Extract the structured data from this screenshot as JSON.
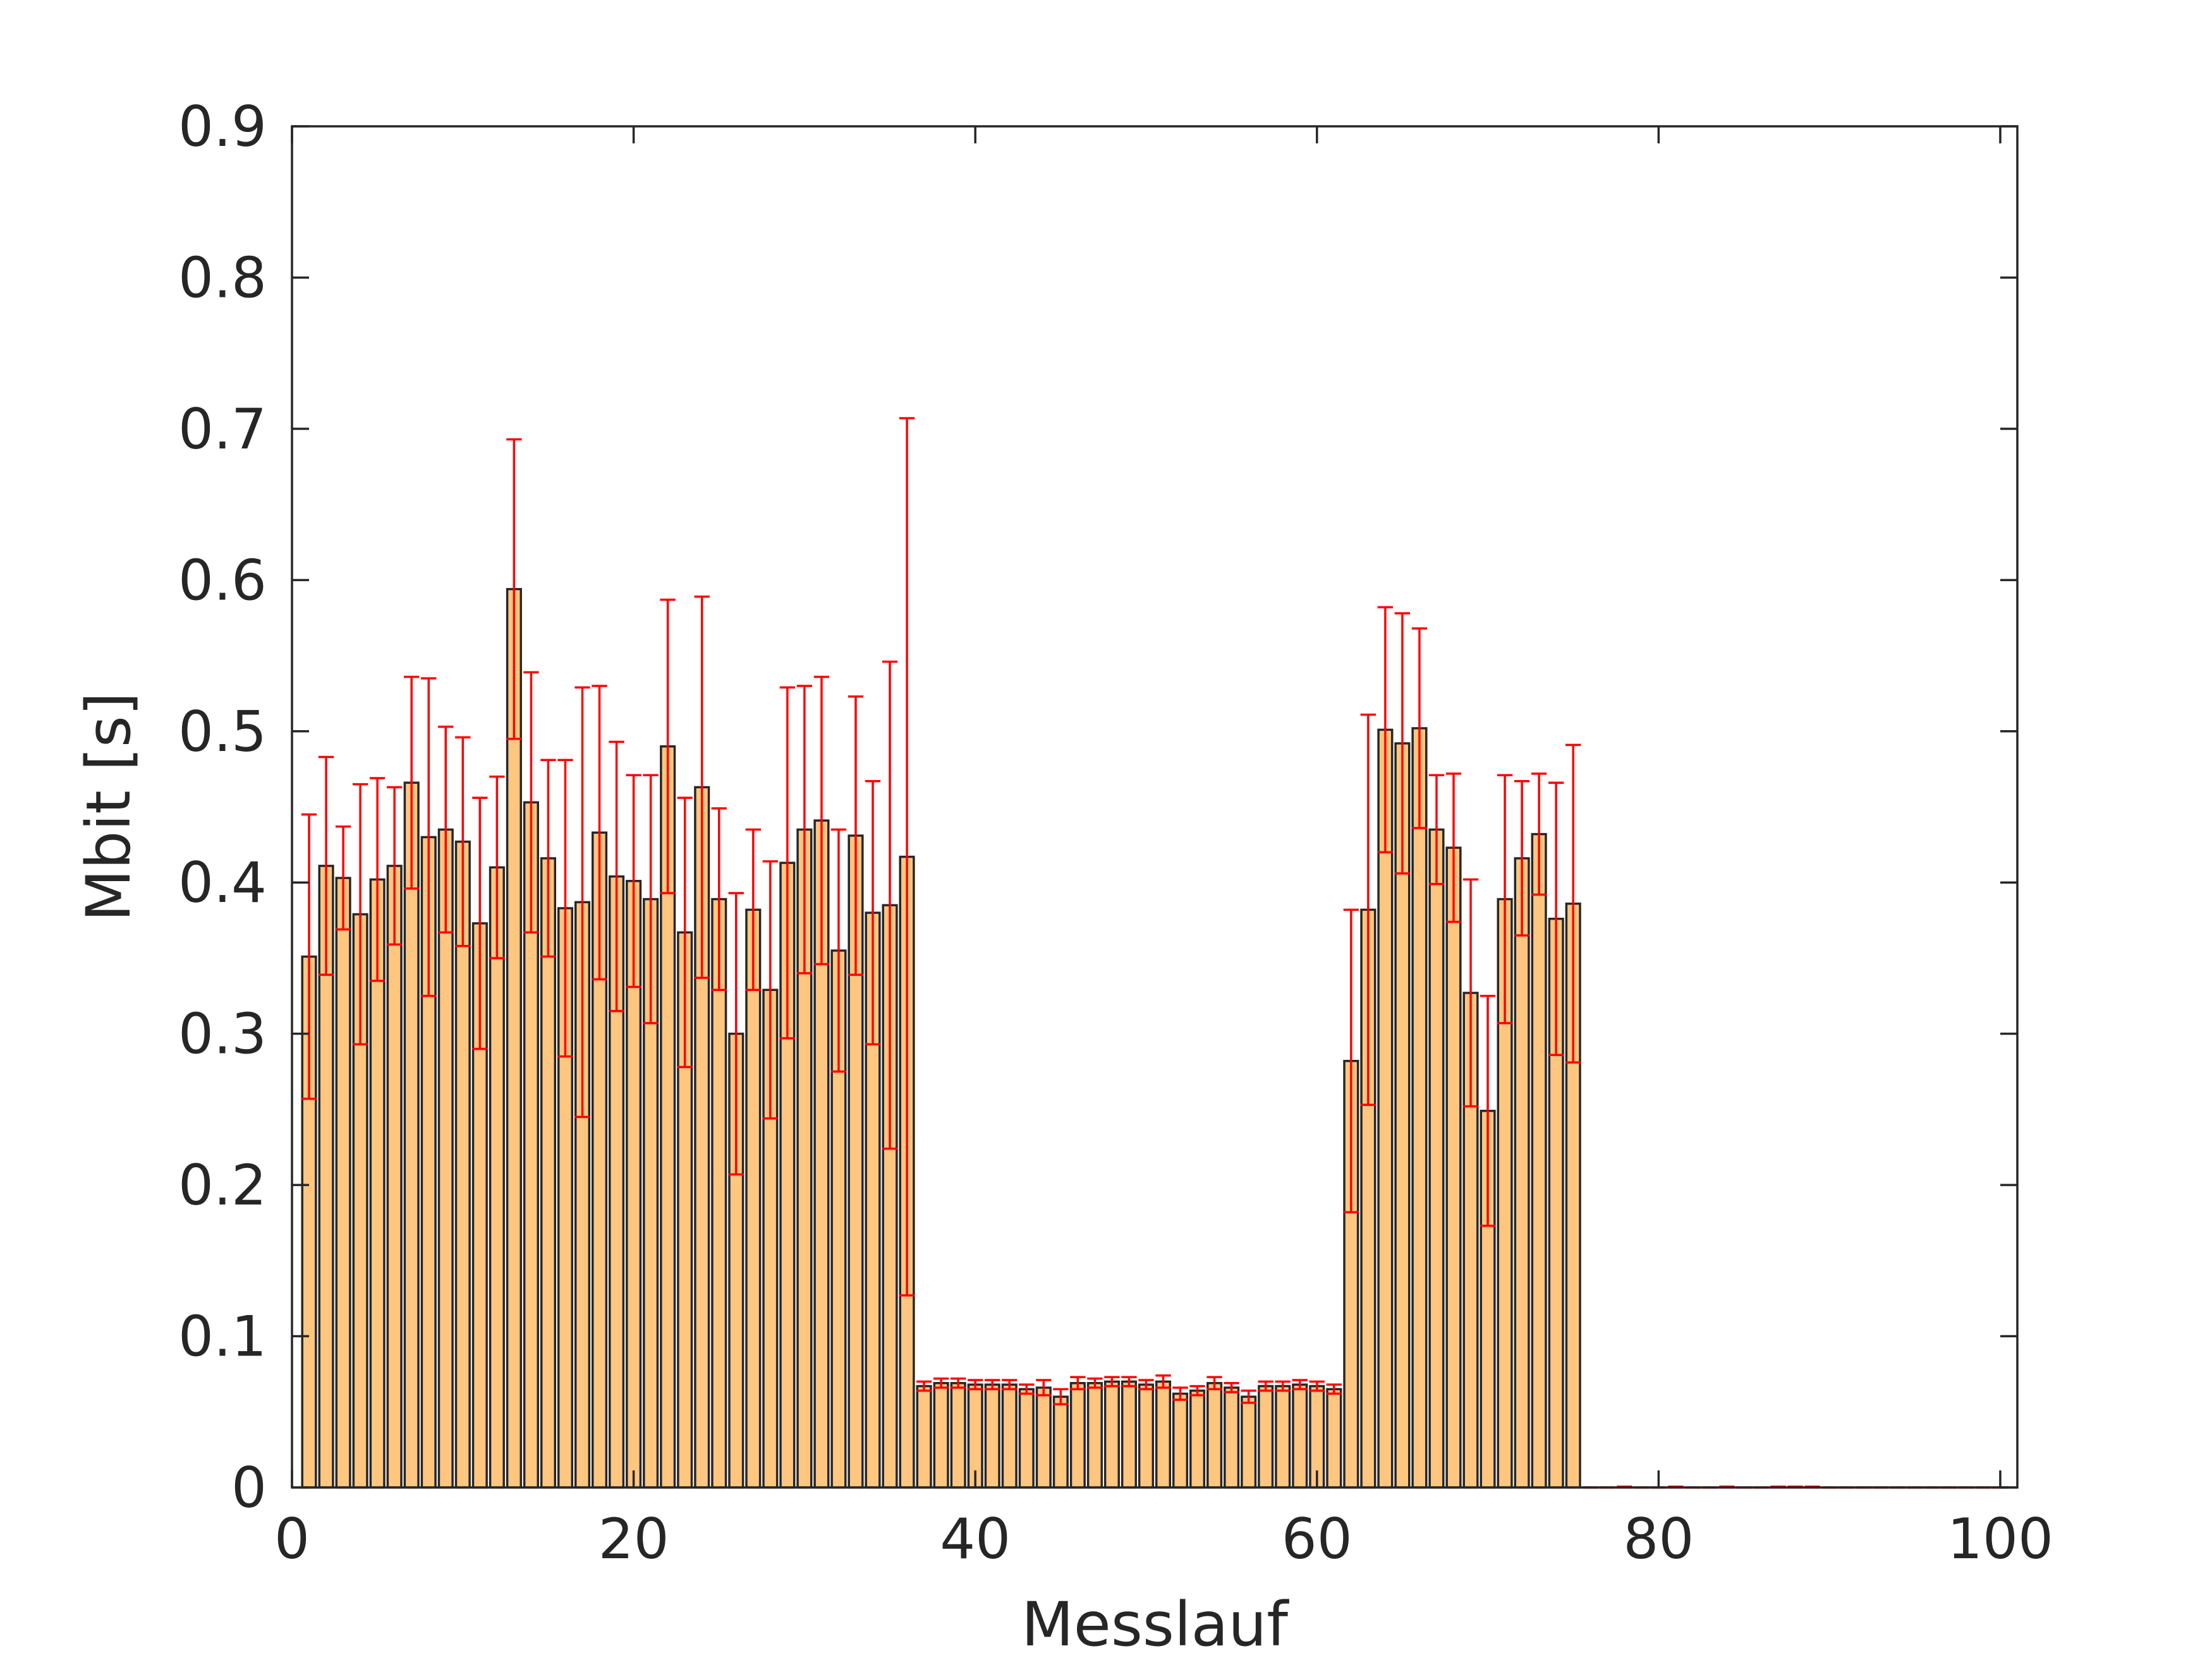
{
  "chart_data": {
    "type": "bar",
    "title": "",
    "xlabel": "Messlauf",
    "ylabel": "Mbit [s]",
    "xlim": [
      0,
      101
    ],
    "ylim": [
      0,
      0.9
    ],
    "xticks": [
      0,
      20,
      40,
      60,
      80,
      100
    ],
    "yticks": [
      0,
      0.1,
      0.2,
      0.3,
      0.4,
      0.5,
      0.6,
      0.7,
      0.8,
      0.9
    ],
    "grid": false,
    "bar_color": "#ffc680",
    "bar_edge_color": "#262626",
    "error_color": "#ff0000",
    "x": [
      1,
      2,
      3,
      4,
      5,
      6,
      7,
      8,
      9,
      10,
      11,
      12,
      13,
      14,
      15,
      16,
      17,
      18,
      19,
      20,
      21,
      22,
      23,
      24,
      25,
      26,
      27,
      28,
      29,
      30,
      31,
      32,
      33,
      34,
      35,
      36,
      37,
      38,
      39,
      40,
      41,
      42,
      43,
      44,
      45,
      46,
      47,
      48,
      49,
      50,
      51,
      52,
      53,
      54,
      55,
      56,
      57,
      58,
      59,
      60,
      61,
      62,
      63,
      64,
      65,
      66,
      67,
      68,
      69,
      70,
      71,
      72,
      73,
      74,
      75,
      76,
      77,
      78,
      79,
      80,
      81,
      82,
      83,
      84,
      85,
      86,
      87,
      88,
      89,
      90,
      91,
      92,
      93,
      94,
      95,
      96,
      97,
      98,
      99,
      100
    ],
    "values": [
      0.351,
      0.411,
      0.403,
      0.379,
      0.402,
      0.411,
      0.466,
      0.43,
      0.435,
      0.427,
      0.373,
      0.41,
      0.594,
      0.453,
      0.416,
      0.383,
      0.387,
      0.433,
      0.404,
      0.401,
      0.389,
      0.49,
      0.367,
      0.463,
      0.389,
      0.3,
      0.382,
      0.329,
      0.413,
      0.435,
      0.441,
      0.355,
      0.431,
      0.38,
      0.385,
      0.417,
      0.067,
      0.069,
      0.069,
      0.068,
      0.068,
      0.068,
      0.065,
      0.066,
      0.06,
      0.069,
      0.069,
      0.07,
      0.07,
      0.068,
      0.07,
      0.062,
      0.064,
      0.069,
      0.066,
      0.06,
      0.067,
      0.067,
      0.068,
      0.067,
      0.065,
      0.282,
      0.382,
      0.501,
      0.492,
      0.502,
      0.435,
      0.423,
      0.327,
      0.249,
      0.389,
      0.416,
      0.432,
      0.376,
      0.386,
      0,
      0,
      0,
      0,
      0,
      0,
      0,
      0,
      0,
      0,
      0,
      0,
      0,
      0,
      0,
      0,
      0,
      0,
      0,
      0,
      0,
      0,
      0,
      0,
      0
    ],
    "errors": [
      0.094,
      0.072,
      0.034,
      0.086,
      0.067,
      0.052,
      0.07,
      0.105,
      0.068,
      0.069,
      0.083,
      0.06,
      0.099,
      0.086,
      0.065,
      0.098,
      0.142,
      0.097,
      0.089,
      0.07,
      0.082,
      0.097,
      0.089,
      0.126,
      0.06,
      0.093,
      0.053,
      0.085,
      0.116,
      0.095,
      0.095,
      0.08,
      0.092,
      0.087,
      0.161,
      0.29,
      0.003,
      0.003,
      0.003,
      0.003,
      0.003,
      0.003,
      0.003,
      0.005,
      0.005,
      0.004,
      0.003,
      0.003,
      0.003,
      0.003,
      0.004,
      0.004,
      0.003,
      0.004,
      0.003,
      0.004,
      0.003,
      0.003,
      0.003,
      0.003,
      0.003,
      0.1,
      0.129,
      0.081,
      0.086,
      0.066,
      0.036,
      0.049,
      0.075,
      0.076,
      0.082,
      0.051,
      0.04,
      0.09,
      0.105,
      0,
      0,
      0.0005,
      0,
      0,
      0.0005,
      0,
      0,
      0.0005,
      0,
      0,
      0.0005,
      0.0005,
      0.0005,
      0,
      0,
      0,
      0,
      0,
      0,
      0,
      0,
      0,
      0,
      0
    ]
  }
}
